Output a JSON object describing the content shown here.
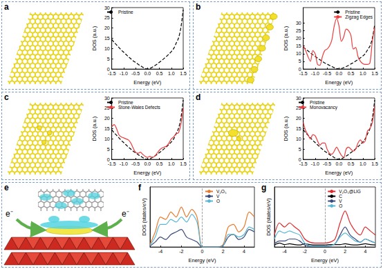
{
  "chart_data": [
    {
      "title": "a",
      "type": "line",
      "x_label": "Energy (eV)",
      "y_label": "DOS (a.u.)",
      "x": [
        -1.5,
        -1.4,
        -1.3,
        -1.2,
        -1.1,
        -1.0,
        -0.9,
        -0.8,
        -0.7,
        -0.6,
        -0.5,
        -0.4,
        -0.3,
        -0.2,
        -0.1,
        0,
        0.1,
        0.2,
        0.3,
        0.4,
        0.5,
        0.6,
        0.7,
        0.8,
        0.9,
        1.0,
        1.1,
        1.2,
        1.3,
        1.4,
        1.5
      ],
      "xlim": [
        -1.5,
        1.5
      ],
      "xticks": [
        -1.5,
        {
          "value": -1,
          "label": "-1.0"
        },
        -0.5,
        {
          "value": 0,
          "label": "0.0"
        },
        0.5,
        {
          "value": 1,
          "label": "1.0"
        },
        1.5
      ],
      "ylim": [
        0,
        30
      ],
      "yticks": [
        0,
        5,
        10,
        15,
        20,
        25,
        30
      ],
      "grid": false,
      "legend": "upper left",
      "series": [
        {
          "name": "Pristine",
          "color": "#000000",
          "line_style": "dashed",
          "values": [
            14.5,
            13,
            11.8,
            10.5,
            9.3,
            8.2,
            7.1,
            6,
            5,
            4,
            3.2,
            2.4,
            1.6,
            0.9,
            0.3,
            0,
            0.3,
            0.9,
            1.6,
            2.4,
            3.3,
            4.2,
            5.2,
            6.2,
            7.3,
            8.5,
            10,
            12.5,
            15,
            20,
            29
          ]
        }
      ]
    },
    {
      "title": "b",
      "type": "line",
      "x_label": "Energy (eV)",
      "y_label": "DOS (a.u.)",
      "x": [
        -1.5,
        -1.4,
        -1.3,
        -1.2,
        -1.1,
        -1.0,
        -0.9,
        -0.8,
        -0.7,
        -0.6,
        -0.5,
        -0.4,
        -0.3,
        -0.2,
        -0.1,
        0,
        0.1,
        0.2,
        0.3,
        0.4,
        0.5,
        0.6,
        0.7,
        0.8,
        0.9,
        1.0,
        1.1,
        1.2,
        1.3,
        1.4,
        1.5
      ],
      "xlim": [
        -1.5,
        1.5
      ],
      "xticks": [
        -1.5,
        {
          "value": -1,
          "label": "-1.0"
        },
        -0.5,
        {
          "value": 0,
          "label": "0.0"
        },
        0.5,
        {
          "value": 1,
          "label": "1.0"
        },
        1.5
      ],
      "ylim": [
        0,
        40
      ],
      "yticks": [
        0,
        5,
        10,
        15,
        20,
        25,
        30
      ],
      "grid": false,
      "legend": "upper right",
      "series": [
        {
          "name": "Pristine",
          "color": "#000000",
          "line_style": "dashed",
          "values": [
            14.5,
            13,
            11.8,
            10.5,
            9.3,
            8.2,
            7.1,
            6,
            5,
            4,
            3.2,
            2.4,
            1.6,
            0.9,
            0.3,
            0,
            0.3,
            0.9,
            1.6,
            2.4,
            3.3,
            4.2,
            5.2,
            6.2,
            7.3,
            8.5,
            10,
            12.5,
            15,
            20,
            29
          ]
        },
        {
          "name": "Zigzag Edges",
          "color": "#ee3b3b",
          "line_style": "solid",
          "values": [
            15,
            12,
            8,
            5,
            12,
            10,
            3,
            2.5,
            8,
            12,
            13,
            15,
            19,
            28,
            33,
            28,
            18,
            21,
            26,
            25,
            22,
            13,
            14,
            8,
            5,
            3.5,
            3,
            3,
            4,
            18,
            27
          ]
        }
      ]
    },
    {
      "title": "c",
      "type": "line",
      "x_label": "Energy (eV)",
      "y_label": "DOS (a.u.)",
      "x": [
        -1.5,
        -1.4,
        -1.3,
        -1.2,
        -1.1,
        -1.0,
        -0.9,
        -0.8,
        -0.7,
        -0.6,
        -0.5,
        -0.4,
        -0.3,
        -0.2,
        -0.1,
        0,
        0.1,
        0.2,
        0.3,
        0.4,
        0.5,
        0.6,
        0.7,
        0.8,
        0.9,
        1.0,
        1.1,
        1.2,
        1.3,
        1.4,
        1.5
      ],
      "xlim": [
        -1.5,
        1.5
      ],
      "xticks": [
        -1.5,
        {
          "value": -1,
          "label": "-1.0"
        },
        -0.5,
        {
          "value": 0,
          "label": "0.0"
        },
        0.5,
        {
          "value": 1,
          "label": "1.0"
        },
        1.5
      ],
      "ylim": [
        0,
        30
      ],
      "yticks": [
        0,
        5,
        10,
        15,
        20,
        25,
        30
      ],
      "grid": false,
      "legend": "upper left",
      "series": [
        {
          "name": "Pristine",
          "color": "#000000",
          "line_style": "dashed",
          "values": [
            14.5,
            13,
            11.8,
            10.5,
            9.3,
            8.2,
            7.1,
            6,
            5,
            4,
            3.2,
            2.4,
            1.6,
            0.9,
            0.3,
            0,
            0.3,
            0.9,
            1.6,
            2.4,
            3.3,
            4.2,
            5.2,
            6.2,
            7.3,
            8.5,
            10,
            12.5,
            15,
            20,
            29
          ]
        },
        {
          "name": "Stone-Wales Defects",
          "color": "#ee3b3b",
          "line_style": "solid",
          "values": [
            16,
            17,
            15,
            12,
            11,
            10.5,
            10,
            9.5,
            8,
            5.5,
            3.5,
            3,
            3.5,
            2.5,
            1.5,
            1,
            1.5,
            1,
            1.5,
            3,
            4.5,
            5.5,
            6,
            6.5,
            8,
            10,
            11,
            12.5,
            13,
            17,
            25
          ]
        }
      ]
    },
    {
      "title": "d",
      "type": "line",
      "x_label": "Energy (eV)",
      "y_label": "DOS (a.u.)",
      "x": [
        -1.5,
        -1.4,
        -1.3,
        -1.2,
        -1.1,
        -1.0,
        -0.9,
        -0.8,
        -0.7,
        -0.6,
        -0.5,
        -0.4,
        -0.3,
        -0.2,
        -0.1,
        0,
        0.1,
        0.2,
        0.3,
        0.4,
        0.5,
        0.6,
        0.7,
        0.8,
        0.9,
        1.0,
        1.1,
        1.2,
        1.3,
        1.4,
        1.5
      ],
      "xlim": [
        -1.5,
        1.5
      ],
      "xticks": [
        -1.5,
        {
          "value": -1,
          "label": "-1.0"
        },
        -0.5,
        {
          "value": 0,
          "label": "0.0"
        },
        0.5,
        {
          "value": 1,
          "label": "1.0"
        },
        1.5
      ],
      "ylim": [
        0,
        30
      ],
      "yticks": [
        0,
        5,
        10,
        15,
        20,
        25,
        30
      ],
      "grid": false,
      "legend": "upper left",
      "series": [
        {
          "name": "Pristine",
          "color": "#000000",
          "line_style": "dashed",
          "values": [
            14.5,
            13,
            11.8,
            10.5,
            9.3,
            8.2,
            7.1,
            6,
            5,
            4,
            3.2,
            2.4,
            1.6,
            0.9,
            0.3,
            0,
            0.3,
            0.9,
            1.6,
            2.4,
            3.3,
            4.2,
            5.2,
            6.2,
            7.3,
            8.5,
            10,
            12.5,
            15,
            20,
            29
          ]
        },
        {
          "name": "Monovacancy",
          "color": "#ee3b3b",
          "line_style": "solid",
          "values": [
            18,
            14,
            12,
            10,
            12,
            11.5,
            9,
            7,
            8,
            8,
            5,
            3,
            2.5,
            4,
            6,
            4,
            2,
            1,
            5,
            6,
            5,
            4,
            5,
            8,
            9.5,
            8,
            9,
            14,
            15,
            18,
            26
          ]
        }
      ]
    },
    {
      "title": "f",
      "type": "line",
      "x_label": "Energy (eV)",
      "y_label": "DOS (states/eV)",
      "x": [
        -5,
        -4.5,
        -4,
        -3.5,
        -3,
        -2.5,
        -2,
        -1.5,
        -1,
        -0.5,
        0,
        0.5,
        1,
        1.5,
        2,
        2.5,
        3,
        3.5,
        4,
        4.5,
        5
      ],
      "xlim": [
        -5,
        5
      ],
      "xticks": [
        -4,
        -2,
        0,
        2,
        4
      ],
      "ylim": [
        0,
        12
      ],
      "grid": false,
      "tick_labels": "x",
      "legend": "upper center",
      "reference_line": 0,
      "series": [
        {
          "name": "V₂O₅",
          "color": "#e8792c",
          "line_style": "solid",
          "values": [
            0.5,
            3,
            6,
            5.5,
            7,
            6,
            8,
            6,
            7.5,
            6,
            0,
            0,
            0,
            0,
            0.5,
            4,
            4.5,
            3,
            4,
            7,
            6
          ]
        },
        {
          "name": "V",
          "color": "#3b4a7a",
          "line_style": "solid",
          "values": [
            0.2,
            1,
            2,
            1.5,
            2.5,
            3,
            3.5,
            2,
            1.5,
            1,
            0,
            0,
            0,
            0,
            0.3,
            2,
            2.5,
            1.5,
            2,
            3.5,
            3
          ]
        },
        {
          "name": "O",
          "color": "#5ab7d4",
          "line_style": "solid",
          "values": [
            0.3,
            2,
            4.5,
            4.5,
            5.5,
            5,
            6,
            5,
            6.5,
            5,
            0,
            0,
            0,
            0,
            0.2,
            2.5,
            2.5,
            2,
            2.5,
            4,
            3.5
          ]
        }
      ]
    },
    {
      "title": "g",
      "type": "line",
      "x_label": "Energy (eV)",
      "y_label": "DOS (states/eV)",
      "x": [
        -5,
        -4.5,
        -4,
        -3.5,
        -3,
        -2.5,
        -2,
        -1.5,
        -1,
        -0.5,
        0,
        0.5,
        1,
        1.5,
        2,
        2.5,
        3,
        3.5,
        4,
        4.5,
        5
      ],
      "xlim": [
        -5,
        5
      ],
      "xticks": [
        -4,
        -2,
        0,
        2,
        4
      ],
      "ylim": [
        0,
        15
      ],
      "grid": false,
      "tick_labels": "x",
      "legend": "upper center",
      "reference_line": 0,
      "series": [
        {
          "name": "V₂O₅@LIG",
          "color": "#e0262a",
          "line_style": "solid",
          "values": [
            3,
            6,
            5,
            6,
            5,
            4,
            2,
            1.2,
            1,
            1,
            1,
            1.2,
            2,
            6,
            9,
            6,
            4,
            3,
            5,
            4,
            3
          ]
        },
        {
          "name": "C",
          "color": "#000000",
          "line_style": "solid",
          "values": [
            0.5,
            1,
            0.6,
            0.8,
            0.6,
            0.5,
            0.8,
            0.6,
            0.5,
            0.5,
            0.5,
            0.6,
            0.6,
            0.6,
            0.8,
            0.6,
            0.5,
            0.6,
            0.8,
            0.6,
            0.5
          ]
        },
        {
          "name": "V",
          "color": "#3b4a7a",
          "line_style": "solid",
          "values": [
            0.8,
            1.5,
            1.5,
            2,
            2,
            1.5,
            0.5,
            0.2,
            0.2,
            0.2,
            0.2,
            0.3,
            0.8,
            3,
            5,
            3,
            2,
            1.2,
            2,
            1.5,
            1
          ]
        },
        {
          "name": "O",
          "color": "#5ab7d4",
          "line_style": "solid",
          "values": [
            2,
            4,
            3.5,
            4,
            3.5,
            3,
            1,
            0.3,
            0.2,
            0.2,
            0.2,
            0.3,
            0.8,
            2.5,
            3.5,
            2.5,
            1.5,
            1.2,
            2,
            1.5,
            1
          ]
        }
      ]
    }
  ],
  "illustration": {
    "title": "e",
    "annotations": [
      "e⁻",
      "e⁻"
    ]
  }
}
